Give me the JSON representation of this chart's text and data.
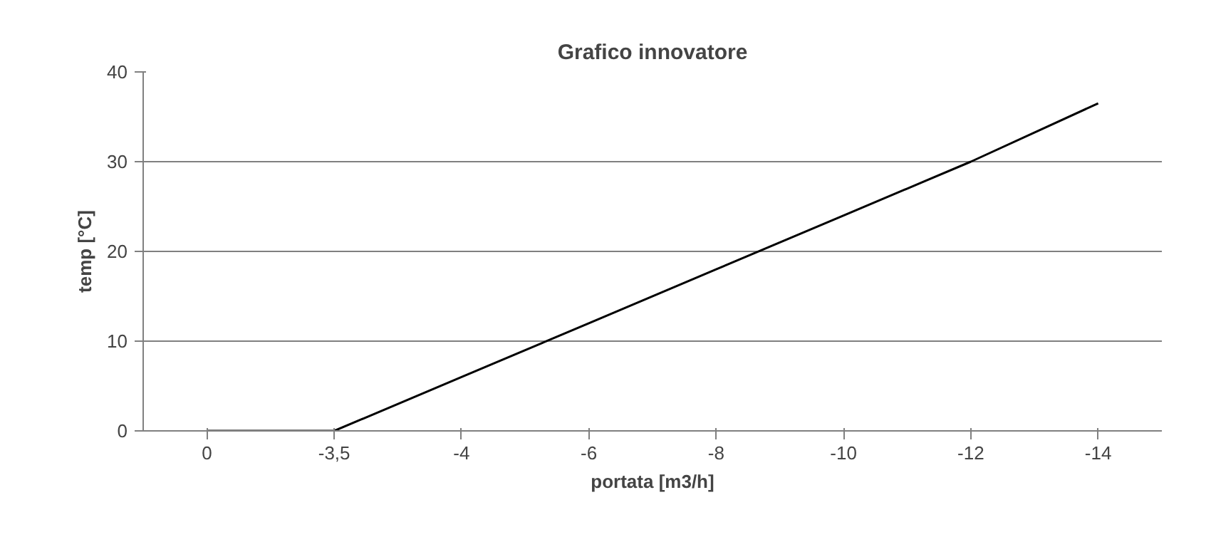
{
  "chart_data": {
    "type": "line",
    "title": "Grafico innovatore",
    "xlabel": "portata [m3/h]",
    "ylabel": "temp [°C]",
    "categories": [
      "0",
      "-3,5",
      "-4",
      "-6",
      "-8",
      "-10",
      "-12",
      "-14"
    ],
    "series": [
      {
        "color": "#000000",
        "values": [
          0,
          0,
          6,
          12,
          18,
          24,
          30,
          36.5
        ]
      }
    ],
    "ylim": [
      0,
      40
    ],
    "yticks": [
      0,
      10,
      20,
      30,
      40
    ],
    "grid": "y",
    "marker": "none",
    "line_style": "solid"
  }
}
